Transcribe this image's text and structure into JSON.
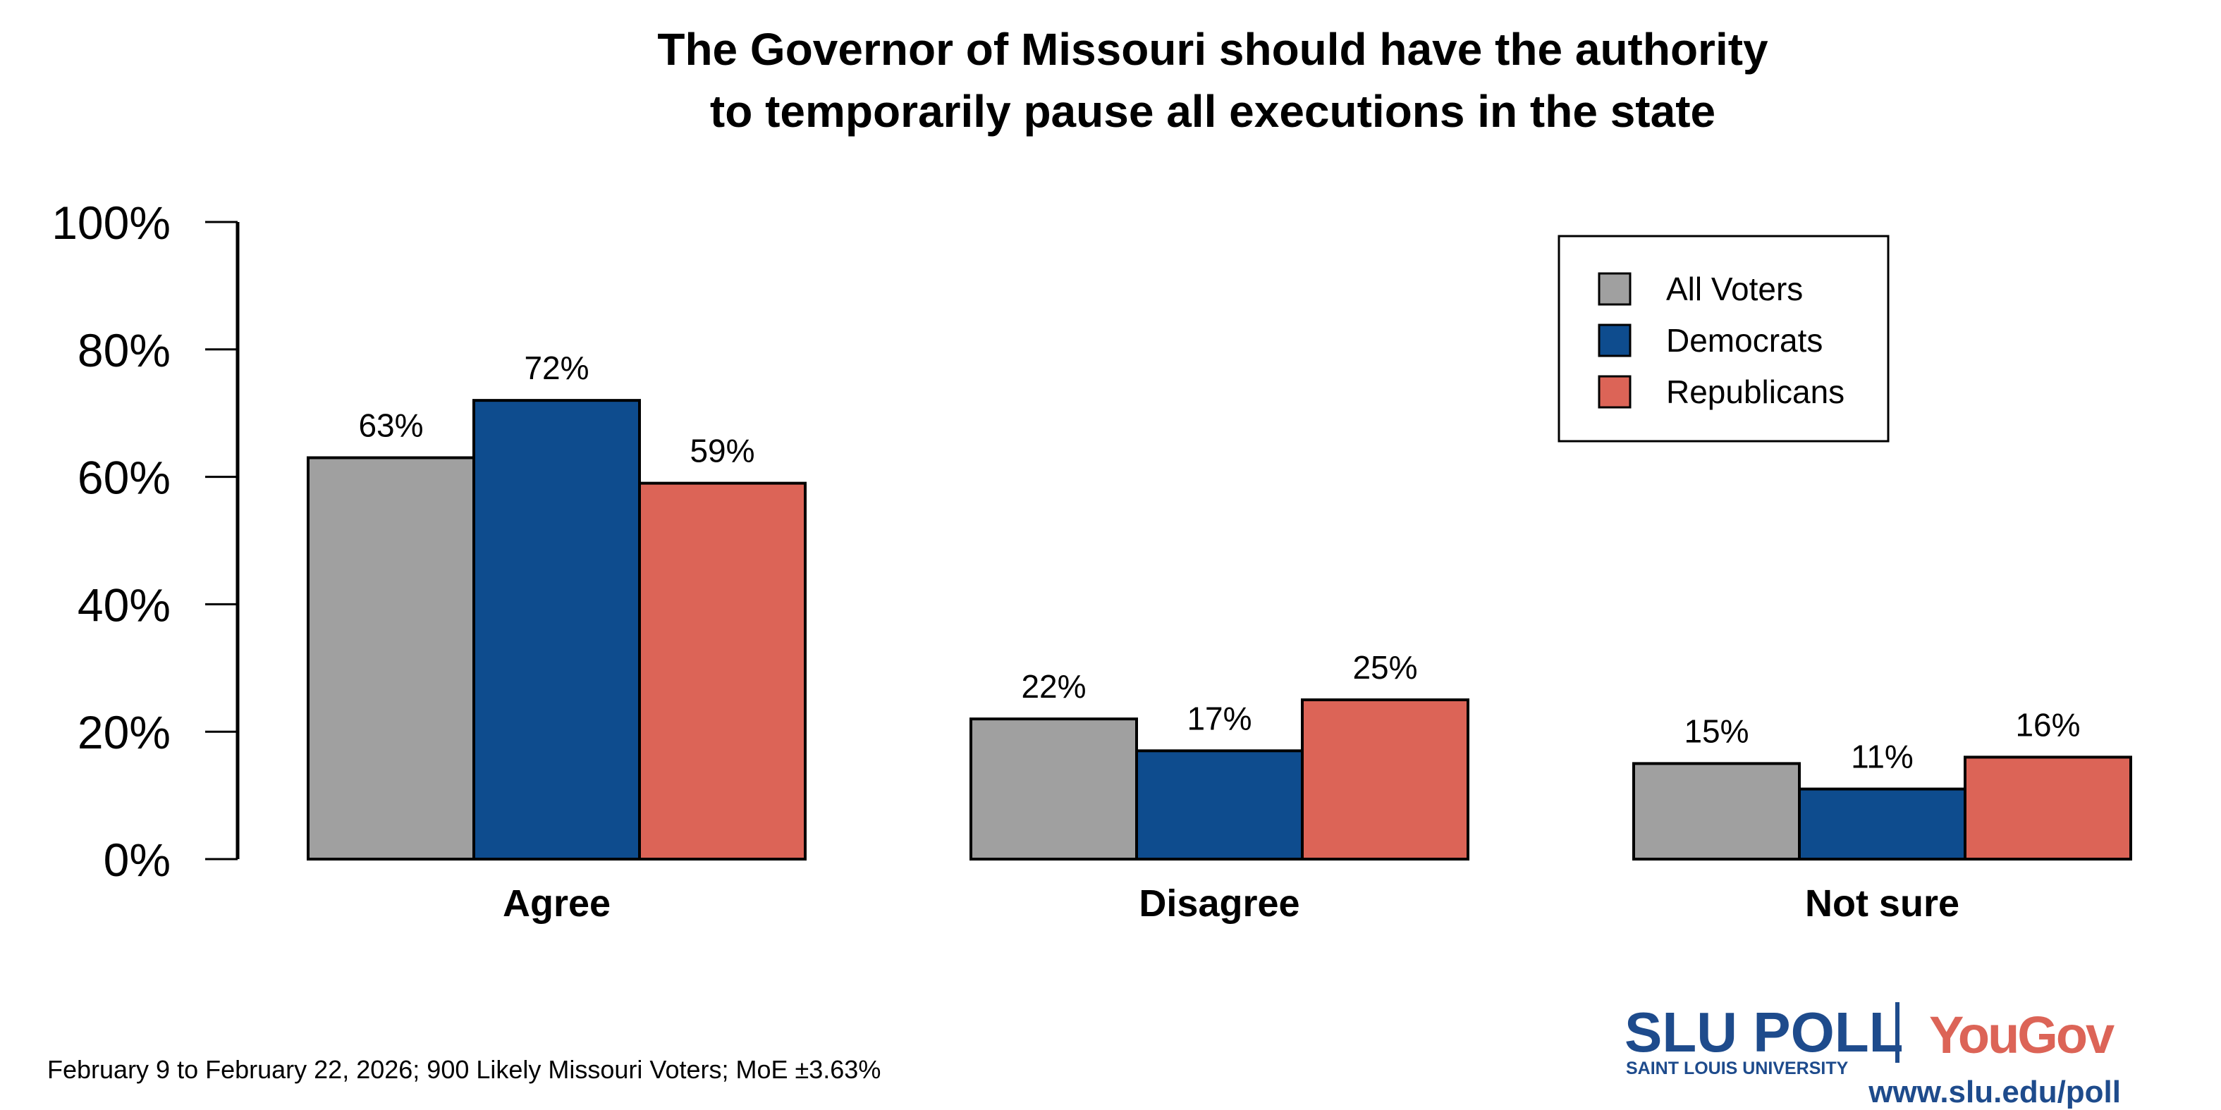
{
  "chart_data": {
    "type": "bar",
    "title_lines": [
      "The Governor of Missouri should have the authority",
      "to temporarily pause all executions in the state"
    ],
    "categories": [
      "Agree",
      "Disagree",
      "Not sure"
    ],
    "series": [
      {
        "name": "All Voters",
        "color": "#a0a0a0",
        "values": [
          63,
          22,
          15
        ]
      },
      {
        "name": "Democrats",
        "color": "#0e4c8e",
        "values": [
          72,
          17,
          11
        ]
      },
      {
        "name": "Republicans",
        "color": "#dc6457",
        "values": [
          59,
          25,
          16
        ]
      }
    ],
    "value_labels": [
      [
        "63%",
        "22%",
        "15%"
      ],
      [
        "72%",
        "17%",
        "11%"
      ],
      [
        "59%",
        "25%",
        "16%"
      ]
    ],
    "ylim": [
      0,
      100
    ],
    "yticks": [
      0,
      20,
      40,
      60,
      80,
      100
    ],
    "ytick_labels": [
      "0%",
      "20%",
      "40%",
      "60%",
      "80%",
      "100%"
    ],
    "grid": false,
    "legend_position": "top-right"
  },
  "footnote": "February 9 to February 22, 2026; 900 Likely Missouri Voters; MoE ±3.63%",
  "logo": {
    "slu_poll": "SLU POLL",
    "slu_sub": "SAINT LOUIS UNIVERSITY",
    "yougov": "YouGov",
    "url": "www.slu.edu/poll",
    "blue": "#1e4b8c",
    "red": "#dc6457"
  }
}
